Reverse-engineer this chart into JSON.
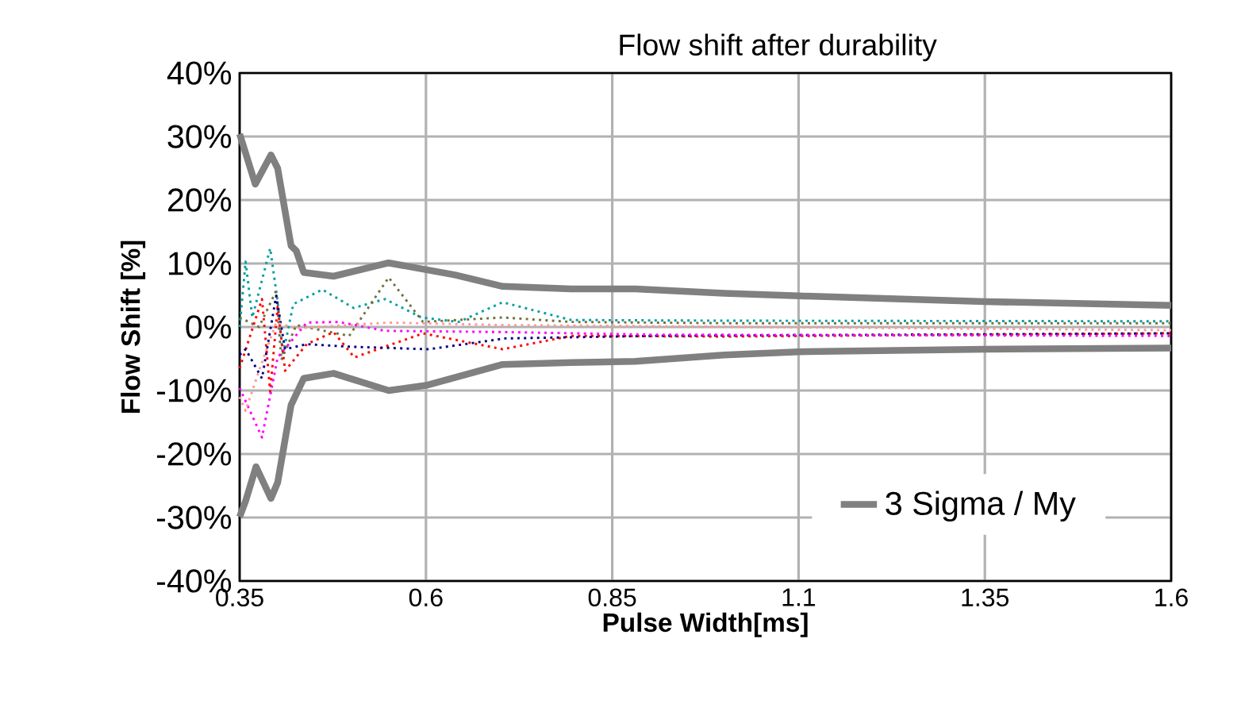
{
  "chart_data": {
    "type": "line",
    "title": "Flow shift after durability",
    "xlabel": "Pulse Width[ms]",
    "ylabel": "Flow Shift [%]",
    "xlim": [
      0.35,
      1.6
    ],
    "xticks": [
      0.35,
      0.6,
      0.85,
      1.1,
      1.35,
      1.6
    ],
    "ylim": [
      -40,
      40
    ],
    "yticks": [
      {
        "value": -40,
        "label": "-40%"
      },
      {
        "value": -30,
        "label": "-30%"
      },
      {
        "value": -20,
        "label": "-20%"
      },
      {
        "value": -10,
        "label": "-10%"
      },
      {
        "value": 0,
        "label": "0%"
      },
      {
        "value": 10,
        "label": "10%"
      },
      {
        "value": 20,
        "label": "20%"
      },
      {
        "value": 30,
        "label": "30%"
      },
      {
        "value": 40,
        "label": "40%"
      }
    ],
    "grid": true,
    "legend": "bottom right",
    "marker": "none",
    "series": [
      {
        "name": "3 Sigma / My",
        "color": "#808080",
        "line_style": "solid",
        "x": [
          0.35,
          0.371,
          0.392,
          0.401,
          0.419,
          0.426,
          0.436,
          0.476,
          0.55,
          0.639,
          0.703,
          0.795,
          0.881,
          1.0,
          1.1,
          1.35,
          1.6
        ],
        "values": [
          30.4,
          22.5,
          27.1,
          25,
          12.8,
          12,
          8.6,
          8,
          10.1,
          8.2,
          6.4,
          6,
          6,
          5.3,
          4.9,
          4,
          3.4
        ]
      },
      {
        "color": "#808080",
        "line_style": "solid",
        "x": [
          0.35,
          0.358,
          0.372,
          0.392,
          0.401,
          0.419,
          0.436,
          0.476,
          0.55,
          0.6,
          0.703,
          0.795,
          0.881,
          1.0,
          1.1,
          1.35,
          1.6
        ],
        "values": [
          -29.9,
          -27.4,
          -22,
          -27,
          -24.5,
          -12.3,
          -8.1,
          -7.3,
          -10,
          -9.2,
          -5.9,
          -5.6,
          -5.4,
          -4.4,
          -3.9,
          -3.5,
          -3.3
        ]
      },
      {
        "color": "#00a0a0",
        "line_style": "dotted",
        "x": [
          0.35,
          0.358,
          0.367,
          0.391,
          0.401,
          0.408,
          0.422,
          0.461,
          0.503,
          0.545,
          0.594,
          0.644,
          0.703,
          0.795,
          1.0,
          1.6
        ],
        "values": [
          0,
          10.3,
          1.5,
          12.4,
          4,
          -4.4,
          3.6,
          5.9,
          3,
          4.4,
          1.5,
          0.8,
          3.9,
          1.1,
          1,
          0.9
        ]
      },
      {
        "color": "#707040",
        "line_style": "dotted",
        "x": [
          0.35,
          0.376,
          0.399,
          0.406,
          0.426,
          0.497,
          0.55,
          0.596,
          0.703,
          0.795,
          1.0,
          1.6
        ],
        "values": [
          1.5,
          0,
          5.7,
          -5.2,
          0.3,
          -1.4,
          7.8,
          0.8,
          1.5,
          0.8,
          0.6,
          0.6
        ]
      },
      {
        "color": "#ff0000",
        "line_style": "dotted",
        "x": [
          0.35,
          0.38,
          0.391,
          0.401,
          0.411,
          0.44,
          0.476,
          0.504,
          0.545,
          0.596,
          0.703,
          0.795,
          1.0,
          1.6
        ],
        "values": [
          -6.5,
          4.4,
          -10.2,
          3.2,
          -6.9,
          -2.7,
          -0.8,
          -4.8,
          -3.1,
          -1,
          -3.5,
          -1.4,
          -1.5,
          -1
        ]
      },
      {
        "color": "#000080",
        "line_style": "dotted",
        "x": [
          0.35,
          0.358,
          0.38,
          0.399,
          0.411,
          0.44,
          0.497,
          0.604,
          0.706,
          0.9,
          1.6
        ],
        "values": [
          -4.4,
          -3.5,
          -8.1,
          4.9,
          -3.5,
          -2.7,
          -3.1,
          -3.5,
          -1.8,
          -1.4,
          -1
        ]
      },
      {
        "color": "#ff00ff",
        "line_style": "dotted",
        "x": [
          0.35,
          0.38,
          0.401,
          0.44,
          0.483,
          0.545,
          0.706,
          0.9,
          1.6
        ],
        "values": [
          -9.6,
          -17.4,
          -4.8,
          0.7,
          0.8,
          -0.6,
          -0.8,
          -1.2,
          -1.4
        ]
      },
      {
        "color": "#ff9999",
        "line_style": "dotted",
        "x": [
          0.35,
          0.358,
          0.376,
          0.399,
          0.426,
          0.497,
          0.55,
          0.706,
          1.6
        ],
        "values": [
          -11,
          -13.2,
          -6.9,
          0.7,
          -0.2,
          0.3,
          0.7,
          0.3,
          -0.5
        ]
      }
    ]
  }
}
